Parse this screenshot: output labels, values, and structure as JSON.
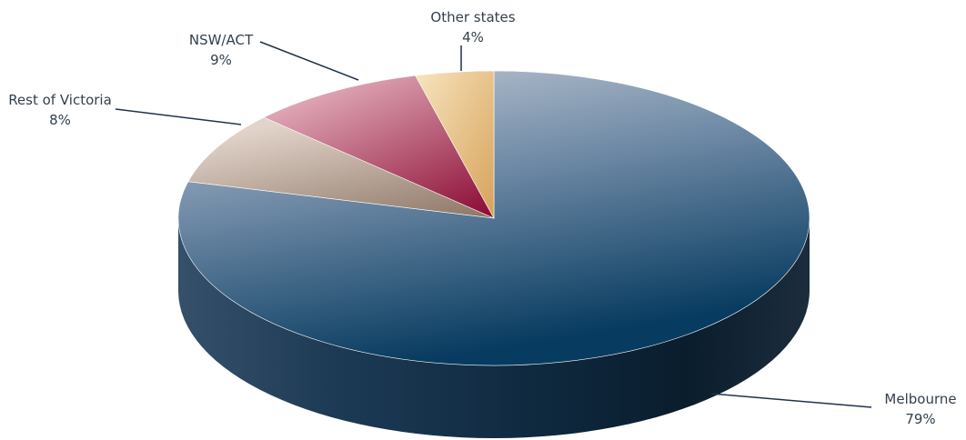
{
  "chart_data": {
    "type": "pie",
    "title": "",
    "slices": [
      {
        "label": "Melbourne",
        "value": 79,
        "value_label": "79%",
        "color": "#3f6286"
      },
      {
        "label": "Rest of Victoria",
        "value": 8,
        "value_label": "8%",
        "color": "#b9a497"
      },
      {
        "label": "NSW/ACT",
        "value": 9,
        "value_label": "9%",
        "color": "#b8506c"
      },
      {
        "label": "Other states",
        "value": 4,
        "value_label": "4%",
        "color": "#e8c48e"
      }
    ],
    "style": "3d-perspective",
    "legend": "none",
    "data_labels": "outside-with-leader-lines"
  }
}
